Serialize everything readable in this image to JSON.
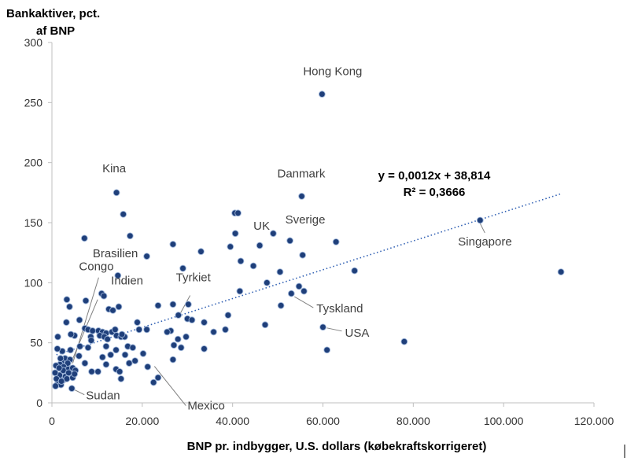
{
  "chart_data": {
    "type": "scatter",
    "ylabel_line1": "Bankaktiver, pct.",
    "ylabel_line2": "af BNP",
    "xlabel": "BNP pr. indbygger, U.S. dollars (købekraftskorrigeret)",
    "xlim": [
      0,
      120000
    ],
    "ylim": [
      0,
      300
    ],
    "x_ticks": [
      0,
      20000,
      40000,
      60000,
      80000,
      100000,
      120000
    ],
    "x_tick_labels": [
      "0",
      "20.000",
      "40.000",
      "60.000",
      "80.000",
      "100.000",
      "120.000"
    ],
    "y_ticks": [
      0,
      50,
      100,
      150,
      200,
      250,
      300
    ],
    "y_tick_labels": [
      "0",
      "50",
      "100",
      "150",
      "200",
      "250",
      "300"
    ],
    "grid": false,
    "point_color": "#1f3f7a",
    "trendline": {
      "slope": 0.0012,
      "intercept": 38.814,
      "x_range": [
        1000,
        112500
      ],
      "equation_label": "y = 0,0012x + 38,814",
      "r2_label": "R² = 0,3666",
      "color": "#2f5fb3"
    },
    "annotations": [
      {
        "label": "Hong Kong",
        "x": 59800,
        "y": 257
      },
      {
        "label": "Kina",
        "x": 14300,
        "y": 175
      },
      {
        "label": "Danmark",
        "x": 55300,
        "y": 172
      },
      {
        "label": "Sverige",
        "x": 52700,
        "y": 135
      },
      {
        "label": "UK",
        "x": 46000,
        "y": 131
      },
      {
        "label": "Singapore",
        "x": 94800,
        "y": 152
      },
      {
        "label": "Brasilien",
        "x": 14600,
        "y": 106
      },
      {
        "label": "Congo",
        "x": 4600,
        "y": 29
      },
      {
        "label": "Indien",
        "x": 11000,
        "y": 88
      },
      {
        "label": "Tyrkiet",
        "x": 28500,
        "y": 75
      },
      {
        "label": "Tyskland",
        "x": 53000,
        "y": 91
      },
      {
        "label": "USA",
        "x": 60000,
        "y": 63
      },
      {
        "label": "Mexico",
        "x": 22000,
        "y": 33
      },
      {
        "label": "Sudan",
        "x": 4400,
        "y": 12
      }
    ],
    "points": [
      [
        59800,
        257
      ],
      [
        14300,
        175
      ],
      [
        55300,
        172
      ],
      [
        94800,
        152
      ],
      [
        52700,
        135
      ],
      [
        46000,
        131
      ],
      [
        15800,
        157
      ],
      [
        40500,
        158
      ],
      [
        41200,
        158
      ],
      [
        17300,
        139
      ],
      [
        7200,
        137
      ],
      [
        26800,
        132
      ],
      [
        40600,
        141
      ],
      [
        49000,
        141
      ],
      [
        62900,
        134
      ],
      [
        33000,
        126
      ],
      [
        21000,
        122
      ],
      [
        55500,
        123
      ],
      [
        39500,
        130
      ],
      [
        41800,
        118
      ],
      [
        29000,
        112
      ],
      [
        44600,
        114
      ],
      [
        50500,
        109
      ],
      [
        67000,
        110
      ],
      [
        112700,
        109
      ],
      [
        14600,
        106
      ],
      [
        47600,
        100
      ],
      [
        11000,
        91
      ],
      [
        11500,
        89
      ],
      [
        54700,
        97
      ],
      [
        55800,
        93
      ],
      [
        53000,
        91
      ],
      [
        41600,
        93
      ],
      [
        7500,
        85
      ],
      [
        3300,
        86
      ],
      [
        3900,
        80
      ],
      [
        14800,
        80
      ],
      [
        12600,
        78
      ],
      [
        13500,
        77
      ],
      [
        23500,
        81
      ],
      [
        26800,
        82
      ],
      [
        30200,
        82
      ],
      [
        28000,
        73
      ],
      [
        50700,
        81
      ],
      [
        30000,
        70
      ],
      [
        31000,
        69
      ],
      [
        33700,
        67
      ],
      [
        39000,
        73
      ],
      [
        18900,
        67
      ],
      [
        19300,
        61
      ],
      [
        21000,
        61
      ],
      [
        26300,
        60
      ],
      [
        25500,
        59
      ],
      [
        35800,
        59
      ],
      [
        38400,
        61
      ],
      [
        47200,
        65
      ],
      [
        60000,
        63
      ],
      [
        60900,
        44
      ],
      [
        78000,
        51
      ],
      [
        6100,
        69
      ],
      [
        3200,
        67
      ],
      [
        7300,
        62
      ],
      [
        8000,
        61
      ],
      [
        9000,
        60
      ],
      [
        10300,
        60
      ],
      [
        11200,
        59
      ],
      [
        12000,
        58
      ],
      [
        13300,
        59
      ],
      [
        14000,
        61
      ],
      [
        14300,
        56
      ],
      [
        15300,
        55
      ],
      [
        16100,
        55
      ],
      [
        5000,
        56
      ],
      [
        8600,
        55
      ],
      [
        10600,
        56
      ],
      [
        11600,
        55
      ],
      [
        12300,
        53
      ],
      [
        1300,
        55
      ],
      [
        4200,
        57
      ],
      [
        8700,
        52
      ],
      [
        15500,
        57
      ],
      [
        2900,
        37
      ],
      [
        2300,
        43
      ],
      [
        4100,
        44
      ],
      [
        6200,
        47
      ],
      [
        8000,
        46
      ],
      [
        12000,
        47
      ],
      [
        14200,
        44
      ],
      [
        16800,
        47
      ],
      [
        17900,
        46
      ],
      [
        20200,
        41
      ],
      [
        28600,
        46
      ],
      [
        27000,
        48
      ],
      [
        27900,
        53
      ],
      [
        29700,
        55
      ],
      [
        33700,
        45
      ],
      [
        16200,
        40
      ],
      [
        13000,
        40
      ],
      [
        11200,
        38
      ],
      [
        6000,
        39
      ],
      [
        4000,
        36
      ],
      [
        3500,
        33
      ],
      [
        2100,
        34
      ],
      [
        1800,
        32
      ],
      [
        900,
        31
      ],
      [
        2600,
        30
      ],
      [
        3600,
        28
      ],
      [
        4600,
        29
      ],
      [
        5200,
        27
      ],
      [
        7300,
        33
      ],
      [
        8800,
        26
      ],
      [
        10200,
        26
      ],
      [
        12000,
        32
      ],
      [
        14200,
        28
      ],
      [
        15000,
        26
      ],
      [
        17100,
        33
      ],
      [
        18400,
        35
      ],
      [
        21200,
        30
      ],
      [
        23500,
        21
      ],
      [
        22500,
        17
      ],
      [
        15300,
        20
      ],
      [
        1300,
        16
      ],
      [
        2000,
        15
      ],
      [
        2500,
        19
      ],
      [
        1700,
        23
      ],
      [
        3000,
        22
      ],
      [
        3300,
        20
      ],
      [
        4600,
        21
      ],
      [
        5000,
        24
      ],
      [
        2500,
        27
      ],
      [
        1600,
        29
      ],
      [
        3700,
        25
      ],
      [
        4400,
        12
      ],
      [
        26800,
        36
      ],
      [
        700,
        25
      ],
      [
        1000,
        20
      ],
      [
        2100,
        18
      ],
      [
        800,
        14
      ],
      [
        1200,
        45
      ],
      [
        1900,
        37
      ]
    ]
  }
}
